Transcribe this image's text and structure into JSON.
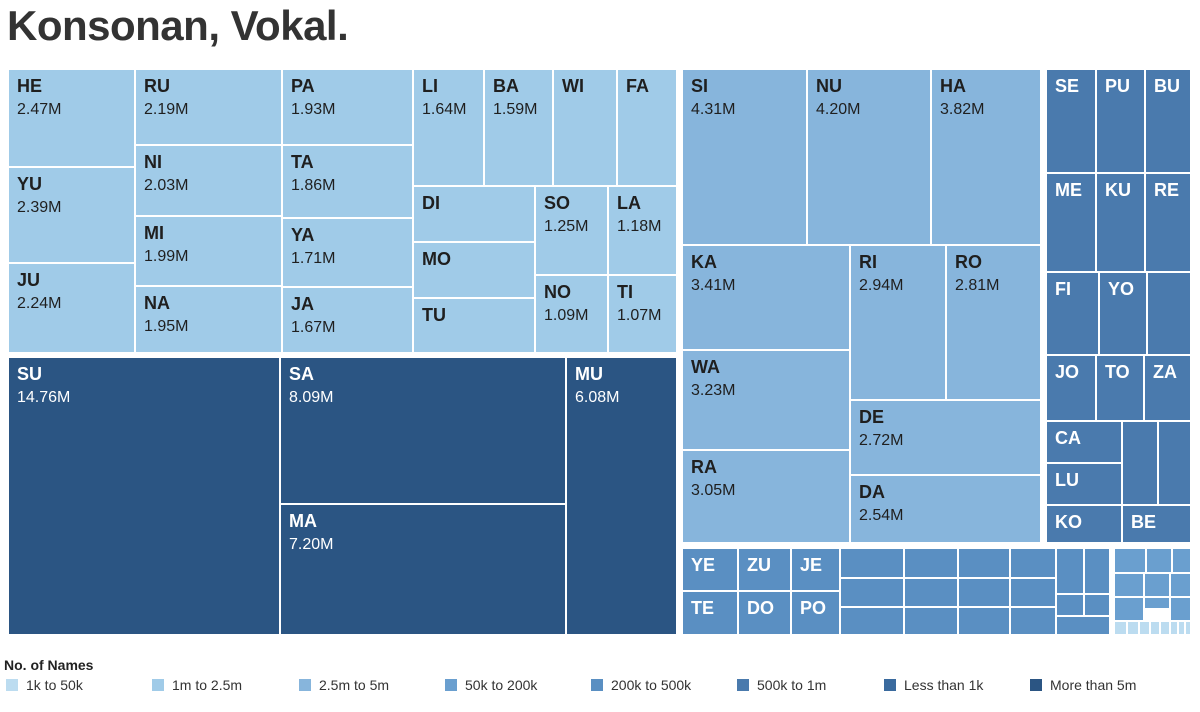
{
  "title": "Konsonan, Vokal.",
  "legend": {
    "title": "No. of Names",
    "items": [
      {
        "label": "1k to 50k",
        "color": "#bcdcf0"
      },
      {
        "label": "1m to 2.5m",
        "color": "#a0cbe8"
      },
      {
        "label": "2.5m to 5m",
        "color": "#87b5dc"
      },
      {
        "label": "50k to 200k",
        "color": "#6a9fcf"
      },
      {
        "label": "200k to 500k",
        "color": "#5a8fc2"
      },
      {
        "label": "500k to 1m",
        "color": "#4a7aad"
      },
      {
        "label": "Less than 1k",
        "color": "#3a6a9e"
      },
      {
        "label": "More than 5m",
        "color": "#2b5583"
      }
    ]
  },
  "chart_data": {
    "type": "treemap",
    "value_unit": "M",
    "groups": [
      {
        "name": "1m to 2.5m",
        "color": "#a0cbe8",
        "cells": [
          {
            "label": "HE",
            "value": 2.47,
            "display": "2.47M"
          },
          {
            "label": "YU",
            "value": 2.39,
            "display": "2.39M"
          },
          {
            "label": "JU",
            "value": 2.24,
            "display": "2.24M"
          },
          {
            "label": "RU",
            "value": 2.19,
            "display": "2.19M"
          },
          {
            "label": "NI",
            "value": 2.03,
            "display": "2.03M"
          },
          {
            "label": "MI",
            "value": 1.99,
            "display": "1.99M"
          },
          {
            "label": "NA",
            "value": 1.95,
            "display": "1.95M"
          },
          {
            "label": "PA",
            "value": 1.93,
            "display": "1.93M"
          },
          {
            "label": "TA",
            "value": 1.86,
            "display": "1.86M"
          },
          {
            "label": "YA",
            "value": 1.71,
            "display": "1.71M"
          },
          {
            "label": "JA",
            "value": 1.67,
            "display": "1.67M"
          },
          {
            "label": "LI",
            "value": 1.64,
            "display": "1.64M"
          },
          {
            "label": "BA",
            "value": 1.59,
            "display": "1.59M"
          },
          {
            "label": "WI",
            "value": null,
            "display": ""
          },
          {
            "label": "FA",
            "value": null,
            "display": ""
          },
          {
            "label": "DI",
            "value": null,
            "display": ""
          },
          {
            "label": "MO",
            "value": null,
            "display": ""
          },
          {
            "label": "TU",
            "value": null,
            "display": ""
          },
          {
            "label": "SO",
            "value": 1.25,
            "display": "1.25M"
          },
          {
            "label": "LA",
            "value": 1.18,
            "display": "1.18M"
          },
          {
            "label": "NO",
            "value": 1.09,
            "display": "1.09M"
          },
          {
            "label": "TI",
            "value": 1.07,
            "display": "1.07M"
          }
        ]
      },
      {
        "name": "More than 5m",
        "color": "#2b5583",
        "cells": [
          {
            "label": "SU",
            "value": 14.76,
            "display": "14.76M"
          },
          {
            "label": "SA",
            "value": 8.09,
            "display": "8.09M"
          },
          {
            "label": "MA",
            "value": 7.2,
            "display": "7.20M"
          },
          {
            "label": "MU",
            "value": 6.08,
            "display": "6.08M"
          }
        ]
      },
      {
        "name": "2.5m to 5m",
        "color": "#87b5dc",
        "cells": [
          {
            "label": "SI",
            "value": 4.31,
            "display": "4.31M"
          },
          {
            "label": "NU",
            "value": 4.2,
            "display": "4.20M"
          },
          {
            "label": "HA",
            "value": 3.82,
            "display": "3.82M"
          },
          {
            "label": "KA",
            "value": 3.41,
            "display": "3.41M"
          },
          {
            "label": "WA",
            "value": 3.23,
            "display": "3.23M"
          },
          {
            "label": "RA",
            "value": 3.05,
            "display": "3.05M"
          },
          {
            "label": "RI",
            "value": 2.94,
            "display": "2.94M"
          },
          {
            "label": "RO",
            "value": 2.81,
            "display": "2.81M"
          },
          {
            "label": "DE",
            "value": 2.72,
            "display": "2.72M"
          },
          {
            "label": "DA",
            "value": 2.54,
            "display": "2.54M"
          }
        ]
      },
      {
        "name": "500k to 1m",
        "color": "#4a7aad",
        "cells": [
          {
            "label": "SE",
            "value": null,
            "display": ""
          },
          {
            "label": "PU",
            "value": null,
            "display": ""
          },
          {
            "label": "BU",
            "value": null,
            "display": ""
          },
          {
            "label": "ME",
            "value": null,
            "display": ""
          },
          {
            "label": "KU",
            "value": null,
            "display": ""
          },
          {
            "label": "RE",
            "value": null,
            "display": ""
          },
          {
            "label": "FI",
            "value": null,
            "display": ""
          },
          {
            "label": "YO",
            "value": null,
            "display": ""
          },
          {
            "label": "",
            "value": null,
            "display": ""
          },
          {
            "label": "JO",
            "value": null,
            "display": ""
          },
          {
            "label": "TO",
            "value": null,
            "display": ""
          },
          {
            "label": "ZA",
            "value": null,
            "display": ""
          },
          {
            "label": "CA",
            "value": null,
            "display": ""
          },
          {
            "label": "",
            "value": null,
            "display": ""
          },
          {
            "label": "",
            "value": null,
            "display": ""
          },
          {
            "label": "LU",
            "value": null,
            "display": ""
          },
          {
            "label": "KO",
            "value": null,
            "display": ""
          },
          {
            "label": "BE",
            "value": null,
            "display": ""
          }
        ]
      },
      {
        "name": "200k to 500k",
        "color": "#5a8fc2",
        "cells": [
          {
            "label": "YE",
            "value": null,
            "display": ""
          },
          {
            "label": "ZU",
            "value": null,
            "display": ""
          },
          {
            "label": "JE",
            "value": null,
            "display": ""
          },
          {
            "label": "TE",
            "value": null,
            "display": ""
          },
          {
            "label": "DO",
            "value": null,
            "display": ""
          },
          {
            "label": "PO",
            "value": null,
            "display": ""
          },
          {
            "label": "",
            "value": null,
            "display": ""
          },
          {
            "label": "",
            "value": null,
            "display": ""
          },
          {
            "label": "",
            "value": null,
            "display": ""
          },
          {
            "label": "",
            "value": null,
            "display": ""
          },
          {
            "label": "",
            "value": null,
            "display": ""
          },
          {
            "label": "",
            "value": null,
            "display": ""
          },
          {
            "label": "",
            "value": null,
            "display": ""
          },
          {
            "label": "",
            "value": null,
            "display": ""
          },
          {
            "label": "",
            "value": null,
            "display": ""
          },
          {
            "label": "",
            "value": null,
            "display": ""
          },
          {
            "label": "",
            "value": null,
            "display": ""
          },
          {
            "label": "",
            "value": null,
            "display": ""
          },
          {
            "label": "",
            "value": null,
            "display": ""
          },
          {
            "label": "",
            "value": null,
            "display": ""
          },
          {
            "label": "",
            "value": null,
            "display": ""
          },
          {
            "label": "",
            "value": null,
            "display": ""
          },
          {
            "label": "",
            "value": null,
            "display": ""
          }
        ]
      },
      {
        "name": "50k to 200k",
        "color": "#6a9fcf",
        "cells": [
          {
            "label": "",
            "value": null,
            "display": ""
          },
          {
            "label": "",
            "value": null,
            "display": ""
          },
          {
            "label": "",
            "value": null,
            "display": ""
          },
          {
            "label": "",
            "value": null,
            "display": ""
          },
          {
            "label": "",
            "value": null,
            "display": ""
          },
          {
            "label": "",
            "value": null,
            "display": ""
          },
          {
            "label": "",
            "value": null,
            "display": ""
          },
          {
            "label": "",
            "value": null,
            "display": ""
          },
          {
            "label": "",
            "value": null,
            "display": ""
          }
        ]
      },
      {
        "name": "1k to 50k",
        "color": "#bcdcf0",
        "cells": [
          {
            "label": "",
            "value": null,
            "display": ""
          },
          {
            "label": "",
            "value": null,
            "display": ""
          },
          {
            "label": "",
            "value": null,
            "display": ""
          },
          {
            "label": "",
            "value": null,
            "display": ""
          },
          {
            "label": "",
            "value": null,
            "display": ""
          },
          {
            "label": "",
            "value": null,
            "display": ""
          },
          {
            "label": "",
            "value": null,
            "display": ""
          },
          {
            "label": "",
            "value": null,
            "display": ""
          }
        ]
      }
    ]
  }
}
